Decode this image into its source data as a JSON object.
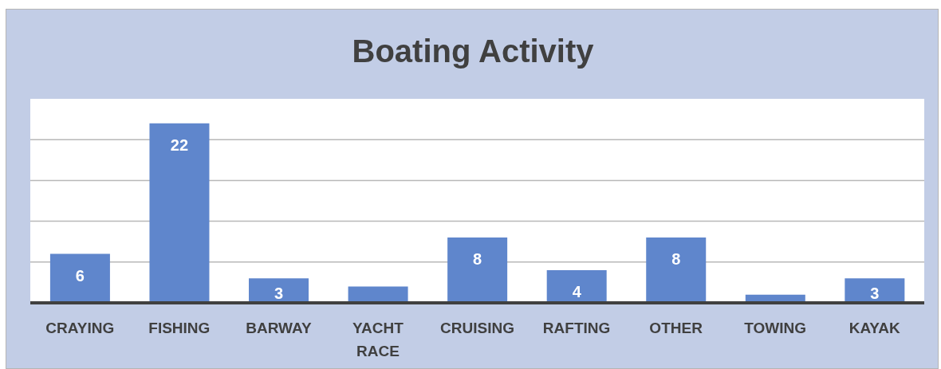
{
  "chart_data": {
    "type": "bar",
    "title": "Boating Activity",
    "categories": [
      "CRAYING",
      "FISHING",
      "BARWAY",
      "YACHT RACE",
      "CRUISING",
      "RAFTING",
      "OTHER",
      "TOWING",
      "KAYAK"
    ],
    "values": [
      6,
      22,
      3,
      2,
      8,
      4,
      8,
      1,
      3
    ],
    "value_labels": [
      "6",
      "22",
      "3",
      null,
      "8",
      "4",
      "8",
      null,
      "3"
    ],
    "color": "#5f86cc",
    "ylim": [
      0,
      25
    ],
    "yticks": [
      {
        "value": 0,
        "label": null
      },
      {
        "value": 5,
        "label": null
      },
      {
        "value": 10,
        "label": null
      },
      {
        "value": 15,
        "label": null
      },
      {
        "value": 20,
        "label": null
      }
    ],
    "grid": "y",
    "tick_labels": "x"
  }
}
